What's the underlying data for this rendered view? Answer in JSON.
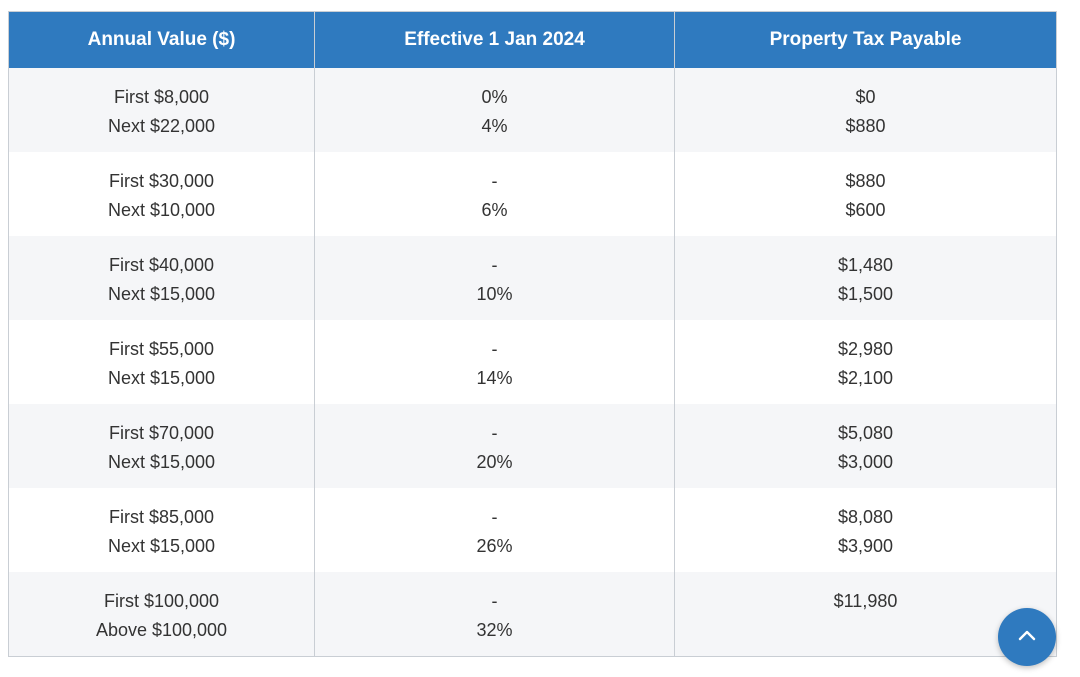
{
  "table": {
    "headers": [
      "Annual Value ($)",
      "Effective 1 Jan 2024",
      "Property Tax Payable"
    ],
    "rows": [
      [
        [
          "First $8,000",
          "Next $22,000"
        ],
        [
          "0%",
          "4%"
        ],
        [
          "$0",
          "$880"
        ]
      ],
      [
        [
          "First $30,000",
          "Next $10,000"
        ],
        [
          "-",
          "6%"
        ],
        [
          "$880",
          "$600"
        ]
      ],
      [
        [
          "First $40,000",
          "Next $15,000"
        ],
        [
          "-",
          "10%"
        ],
        [
          "$1,480",
          "$1,500"
        ]
      ],
      [
        [
          "First $55,000",
          "Next $15,000"
        ],
        [
          "-",
          "14%"
        ],
        [
          "$2,980",
          "$2,100"
        ]
      ],
      [
        [
          "First $70,000",
          "Next $15,000"
        ],
        [
          "-",
          "20%"
        ],
        [
          "$5,080",
          "$3,000"
        ]
      ],
      [
        [
          "First $85,000",
          "Next $15,000"
        ],
        [
          "-",
          "26%"
        ],
        [
          "$8,080",
          "$3,900"
        ]
      ],
      [
        [
          "First $100,000",
          "Above $100,000"
        ],
        [
          "-",
          "32%"
        ],
        [
          "$11,980",
          ""
        ]
      ]
    ]
  },
  "scroll_top_button": {
    "icon": "chevron-up-icon",
    "color": "#2f7abf"
  },
  "colors": {
    "header_bg": "#2f7abf",
    "header_text": "#ffffff",
    "row_alt_bg": "#f5f6f8",
    "body_text": "#333333",
    "border": "#c9ced4"
  }
}
